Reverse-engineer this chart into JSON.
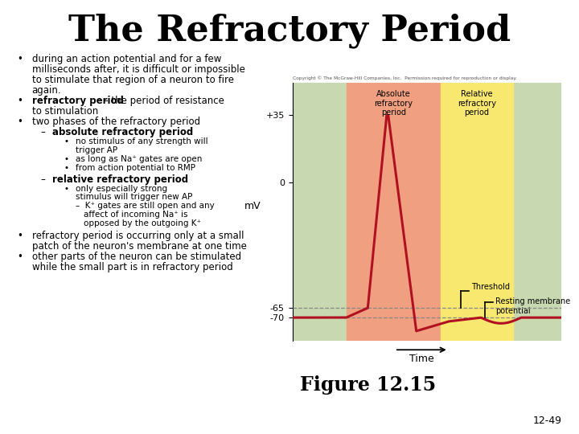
{
  "title": "The Refractory Period",
  "title_fontsize": 32,
  "background_color": "#ffffff",
  "figure_caption": "Figure 12.15",
  "page_num": "12-49",
  "copyright": "Copyright © The McGraw-Hill Companies, Inc.  Permission required for reproduction or display.",
  "chart": {
    "bg_outer": "#c8d8b0",
    "bg_absolute": "#f0a080",
    "bg_relative": "#f8e870",
    "ylabel": "mV",
    "xlabel": "Time",
    "labels": {
      "absolute": "Absolute\nrefractory\nperiod",
      "relative": "Relative\nrefractory\nperiod",
      "threshold": "Threshold",
      "resting": "Resting membrane\npotential"
    },
    "curve_color": "#b01020",
    "curve_lw": 2.2,
    "ylim": [
      -82,
      52
    ],
    "xlim": [
      0,
      10
    ],
    "abs_x_start": 2.0,
    "abs_x_end": 5.5,
    "rel_x_start": 5.5,
    "rel_x_end": 8.2,
    "threshold_y": -65,
    "resting_y": -70
  }
}
